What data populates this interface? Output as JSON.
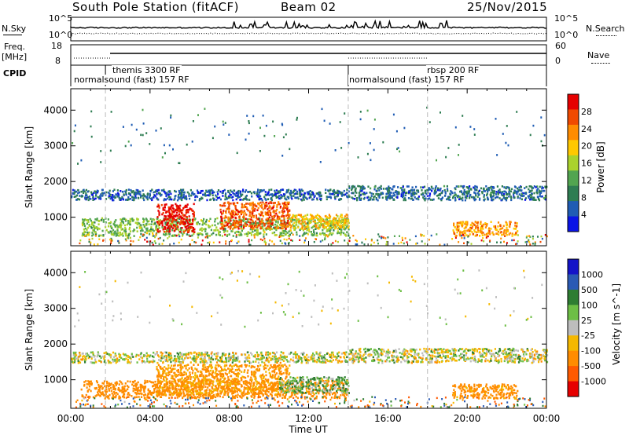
{
  "header": {
    "station": "South Pole Station (fitACF)",
    "beam": "Beam 02",
    "date": "25/Nov/2015"
  },
  "top_panels": {
    "nsky_label": "N.Sky",
    "nsearch_label": "N.Search",
    "nsky_ticks": [
      "10^5",
      "10^0"
    ],
    "nsearch_ticks": [
      "10^5",
      "10^0"
    ],
    "freq_label": "Freq.",
    "freq_unit": "[MHz]",
    "freq_ticks": [
      "18",
      "8"
    ],
    "nave_label": "Nave",
    "nave_ticks": [
      "60",
      "0"
    ],
    "cpid_label": "CPID"
  },
  "cpid_segments": [
    {
      "start_hour": 0.0,
      "end_hour": 14.0,
      "label": "normalsound (fast) 157 RF",
      "row": "lower"
    },
    {
      "start_hour": 1.75,
      "end_hour": 14.0,
      "label": "themis 3300 RF",
      "row": "upper"
    },
    {
      "start_hour": 14.0,
      "end_hour": 24.0,
      "label": "normalsound (fast) 157 RF",
      "row": "lower"
    },
    {
      "start_hour": 18.0,
      "end_hour": 24.0,
      "label": "rbsp 200 RF",
      "row": "upper"
    }
  ],
  "colors": {
    "power_scale": [
      "#0a14e6",
      "#1f5cb4",
      "#2e7d52",
      "#52a550",
      "#aad22c",
      "#ffc800",
      "#ff8c00",
      "#f04a00",
      "#e60000"
    ],
    "velocity_scale": [
      "#1414c8",
      "#2a5ab4",
      "#2e7d32",
      "#6dbe45",
      "#bdbdbd",
      "#f5b800",
      "#ff8c00",
      "#ff5a00",
      "#e60000"
    ],
    "frame": "#000000",
    "dash_line": "#bbbbbb"
  },
  "chart_data": [
    {
      "type": "heatmap",
      "title": "",
      "xlabel": "",
      "ylabel": "Slant Range [km]",
      "xlim": [
        0,
        24
      ],
      "ylim": [
        200,
        4600
      ],
      "x_ticks": [
        0,
        4,
        8,
        12,
        16,
        20,
        24
      ],
      "y_ticks": [
        1000,
        2000,
        3000,
        4000
      ],
      "colorbar_label": "Power [dB]",
      "colorbar_ticks": [
        4,
        8,
        12,
        16,
        20,
        24,
        28
      ],
      "colorbar_range": [
        0,
        32
      ],
      "echo_regions": [
        {
          "t0": 0.5,
          "t1": 14.0,
          "r0": 500,
          "r1": 1000,
          "value": 14
        },
        {
          "t0": 4.3,
          "t1": 6.2,
          "r0": 600,
          "r1": 1400,
          "value": 30
        },
        {
          "t0": 7.5,
          "t1": 11.0,
          "r0": 700,
          "r1": 1450,
          "value": 26
        },
        {
          "t0": 11.0,
          "t1": 14.0,
          "r0": 700,
          "r1": 1100,
          "value": 20
        },
        {
          "t0": 0.0,
          "t1": 14.0,
          "r0": 1500,
          "r1": 1800,
          "value": 6
        },
        {
          "t0": 14.0,
          "t1": 24.0,
          "r0": 1500,
          "r1": 1900,
          "value": 7
        },
        {
          "t0": 19.2,
          "t1": 22.5,
          "r0": 500,
          "r1": 900,
          "value": 22
        }
      ],
      "grid": false
    },
    {
      "type": "heatmap",
      "title": "",
      "xlabel": "Time UT",
      "ylabel": "Slant Range [km]",
      "xlim": [
        0,
        24
      ],
      "ylim": [
        200,
        4600
      ],
      "x_ticks": [
        0,
        4,
        8,
        12,
        16,
        20,
        24
      ],
      "x_tick_labels": [
        "00:00",
        "04:00",
        "08:00",
        "12:00",
        "16:00",
        "20:00",
        "00:00"
      ],
      "y_ticks": [
        1000,
        2000,
        3000,
        4000
      ],
      "colorbar_label": "Velocity [m s^-1]",
      "colorbar_ticks": [
        "1000",
        "500",
        "100",
        "25",
        "-25",
        "-100",
        "-500",
        "-1000"
      ],
      "echo_regions": [
        {
          "t0": 0.5,
          "t1": 14.0,
          "r0": 500,
          "r1": 1000,
          "value": -300
        },
        {
          "t0": 4.3,
          "t1": 11.0,
          "r0": 600,
          "r1": 1450,
          "value": -150
        },
        {
          "t0": 10.5,
          "t1": 14.0,
          "r0": 650,
          "r1": 1100,
          "value": 80
        },
        {
          "t0": 0.0,
          "t1": 14.0,
          "r0": 1500,
          "r1": 1800,
          "value": 0
        },
        {
          "t0": 14.0,
          "t1": 24.0,
          "r0": 1500,
          "r1": 1900,
          "value": 0
        },
        {
          "t0": 19.2,
          "t1": 22.5,
          "r0": 500,
          "r1": 900,
          "value": -200
        }
      ],
      "grid": false
    }
  ]
}
